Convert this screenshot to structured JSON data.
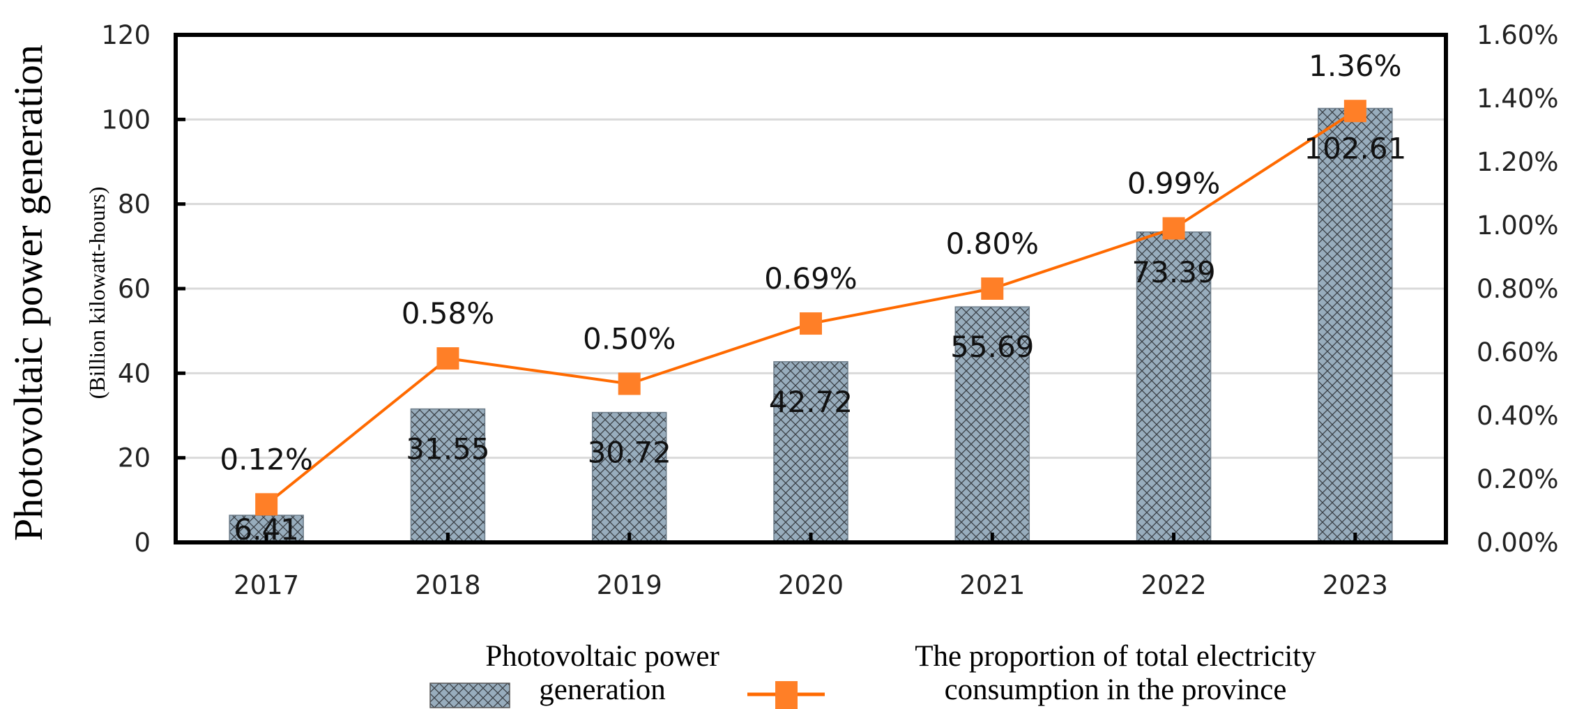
{
  "chart_data": {
    "type": "bar+line",
    "title": "",
    "categories": [
      "2017",
      "2018",
      "2019",
      "2020",
      "2021",
      "2022",
      "2023"
    ],
    "series": [
      {
        "name": "Photovoltaic power generation",
        "type": "bar",
        "axis": "left",
        "values": [
          6.41,
          31.55,
          30.72,
          42.72,
          55.69,
          73.39,
          102.61
        ],
        "labels": [
          "6.41",
          "31.55",
          "30.72",
          "42.72",
          "55.69",
          "73.39",
          "102.61"
        ],
        "color": "#98adbd"
      },
      {
        "name": "The proportion of total electricity consumption in the province",
        "type": "line",
        "axis": "right",
        "values": [
          0.12,
          0.58,
          0.5,
          0.69,
          0.8,
          0.99,
          1.36
        ],
        "labels": [
          "0.12%",
          "0.58%",
          "0.50%",
          "0.69%",
          "0.80%",
          "0.99%",
          "1.36%"
        ],
        "color": "#ff7f27"
      }
    ],
    "ylabel": "Photovoltaic power generation",
    "ylabel_sub": "(Billion kilowatt-hours)",
    "ylim": [
      0,
      120
    ],
    "yticks": [
      "0",
      "20",
      "40",
      "60",
      "80",
      "100",
      "120"
    ],
    "y2lim": [
      0,
      1.6
    ],
    "y2ticks": [
      "0.00%",
      "0.20%",
      "0.40%",
      "0.60%",
      "0.80%",
      "1.00%",
      "1.20%",
      "1.40%",
      "1.60%"
    ],
    "grid": true,
    "legend": {
      "placement": "bottom",
      "bar_label_lines": [
        "Photovoltaic power",
        "generation"
      ],
      "line_label_lines": [
        "The proportion of total electricity",
        "consumption in the province"
      ]
    }
  }
}
